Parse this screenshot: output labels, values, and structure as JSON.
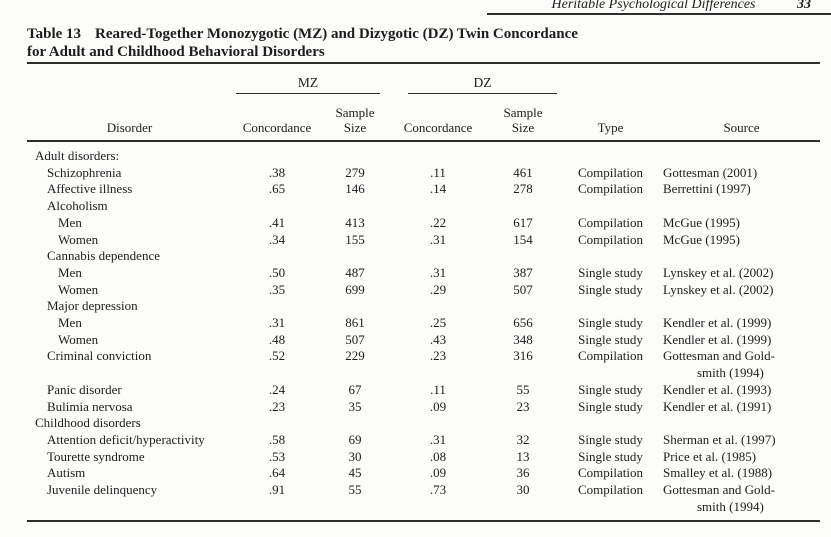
{
  "header": {
    "running_title": "Heritable Psychological Differences",
    "page_number": "33"
  },
  "table": {
    "label": "Table 13",
    "title_line1": "Reared-Together Monozygotic (MZ) and Dizygotic (DZ) Twin Concordance",
    "title_line2": "for Adult and Childhood Behavioral Disorders",
    "col_groups": {
      "mz": "MZ",
      "dz": "DZ"
    },
    "columns": {
      "disorder": "Disorder",
      "concordance": "Concordance",
      "sample": "Sample",
      "size": "Size",
      "type": "Type",
      "source": "Source"
    },
    "rows": [
      {
        "label": "Adult disorders:",
        "indent": 0
      },
      {
        "label": "Schizophrenia",
        "indent": 1,
        "mz_conc": ".38",
        "mz_n": "279",
        "dz_conc": ".11",
        "dz_n": "461",
        "type": "Compilation",
        "source": "Gottesman (2001)"
      },
      {
        "label": "Affective illness",
        "indent": 1,
        "mz_conc": ".65",
        "mz_n": "146",
        "dz_conc": ".14",
        "dz_n": "278",
        "type": "Compilation",
        "source": "Berrettini (1997)"
      },
      {
        "label": "Alcoholism",
        "indent": 1
      },
      {
        "label": "Men",
        "indent": 2,
        "mz_conc": ".41",
        "mz_n": "413",
        "dz_conc": ".22",
        "dz_n": "617",
        "type": "Compilation",
        "source": "McGue (1995)"
      },
      {
        "label": "Women",
        "indent": 2,
        "mz_conc": ".34",
        "mz_n": "155",
        "dz_conc": ".31",
        "dz_n": "154",
        "type": "Compilation",
        "source": "McGue (1995)"
      },
      {
        "label": "Cannabis dependence",
        "indent": 1
      },
      {
        "label": "Men",
        "indent": 2,
        "mz_conc": ".50",
        "mz_n": "487",
        "dz_conc": ".31",
        "dz_n": "387",
        "type": "Single study",
        "source": "Lynskey et al. (2002)"
      },
      {
        "label": "Women",
        "indent": 2,
        "mz_conc": ".35",
        "mz_n": "699",
        "dz_conc": ".29",
        "dz_n": "507",
        "type": "Single study",
        "source": "Lynskey et al. (2002)"
      },
      {
        "label": "Major depression",
        "indent": 1
      },
      {
        "label": "Men",
        "indent": 2,
        "mz_conc": ".31",
        "mz_n": "861",
        "dz_conc": ".25",
        "dz_n": "656",
        "type": "Single study",
        "source": "Kendler et al. (1999)"
      },
      {
        "label": "Women",
        "indent": 2,
        "mz_conc": ".48",
        "mz_n": "507",
        "dz_conc": ".43",
        "dz_n": "348",
        "type": "Single study",
        "source": "Kendler et al. (1999)"
      },
      {
        "label": "Criminal conviction",
        "indent": 1,
        "mz_conc": ".52",
        "mz_n": "229",
        "dz_conc": ".23",
        "dz_n": "316",
        "type": "Compilation",
        "source": "Gottesman and Gold-\nsmith (1994)"
      },
      {
        "label": "Panic disorder",
        "indent": 1,
        "mz_conc": ".24",
        "mz_n": "67",
        "dz_conc": ".11",
        "dz_n": "55",
        "type": "Single study",
        "source": "Kendler et al. (1993)"
      },
      {
        "label": "Bulimia nervosa",
        "indent": 1,
        "mz_conc": ".23",
        "mz_n": "35",
        "dz_conc": ".09",
        "dz_n": "23",
        "type": "Single study",
        "source": "Kendler et al. (1991)"
      },
      {
        "label": "Childhood disorders",
        "indent": 0
      },
      {
        "label": "Attention deficit/hyperactivity",
        "indent": 1,
        "mz_conc": ".58",
        "mz_n": "69",
        "dz_conc": ".31",
        "dz_n": "32",
        "type": "Single study",
        "source": "Sherman et al. (1997)"
      },
      {
        "label": "Tourette syndrome",
        "indent": 1,
        "mz_conc": ".53",
        "mz_n": "30",
        "dz_conc": ".08",
        "dz_n": "13",
        "type": "Single study",
        "source": "Price et al. (1985)"
      },
      {
        "label": "Autism",
        "indent": 1,
        "mz_conc": ".64",
        "mz_n": "45",
        "dz_conc": ".09",
        "dz_n": "36",
        "type": "Compilation",
        "source": "Smalley et al. (1988)"
      },
      {
        "label": "Juvenile delinquency",
        "indent": 1,
        "mz_conc": ".91",
        "mz_n": "55",
        "dz_conc": ".73",
        "dz_n": "30",
        "type": "Compilation",
        "source": "Gottesman and Gold-\nsmith (1994)"
      }
    ]
  },
  "colors": {
    "page_background": "#fcfcfa",
    "text": "#1d1d1d",
    "rule": "#2e2e2e"
  }
}
